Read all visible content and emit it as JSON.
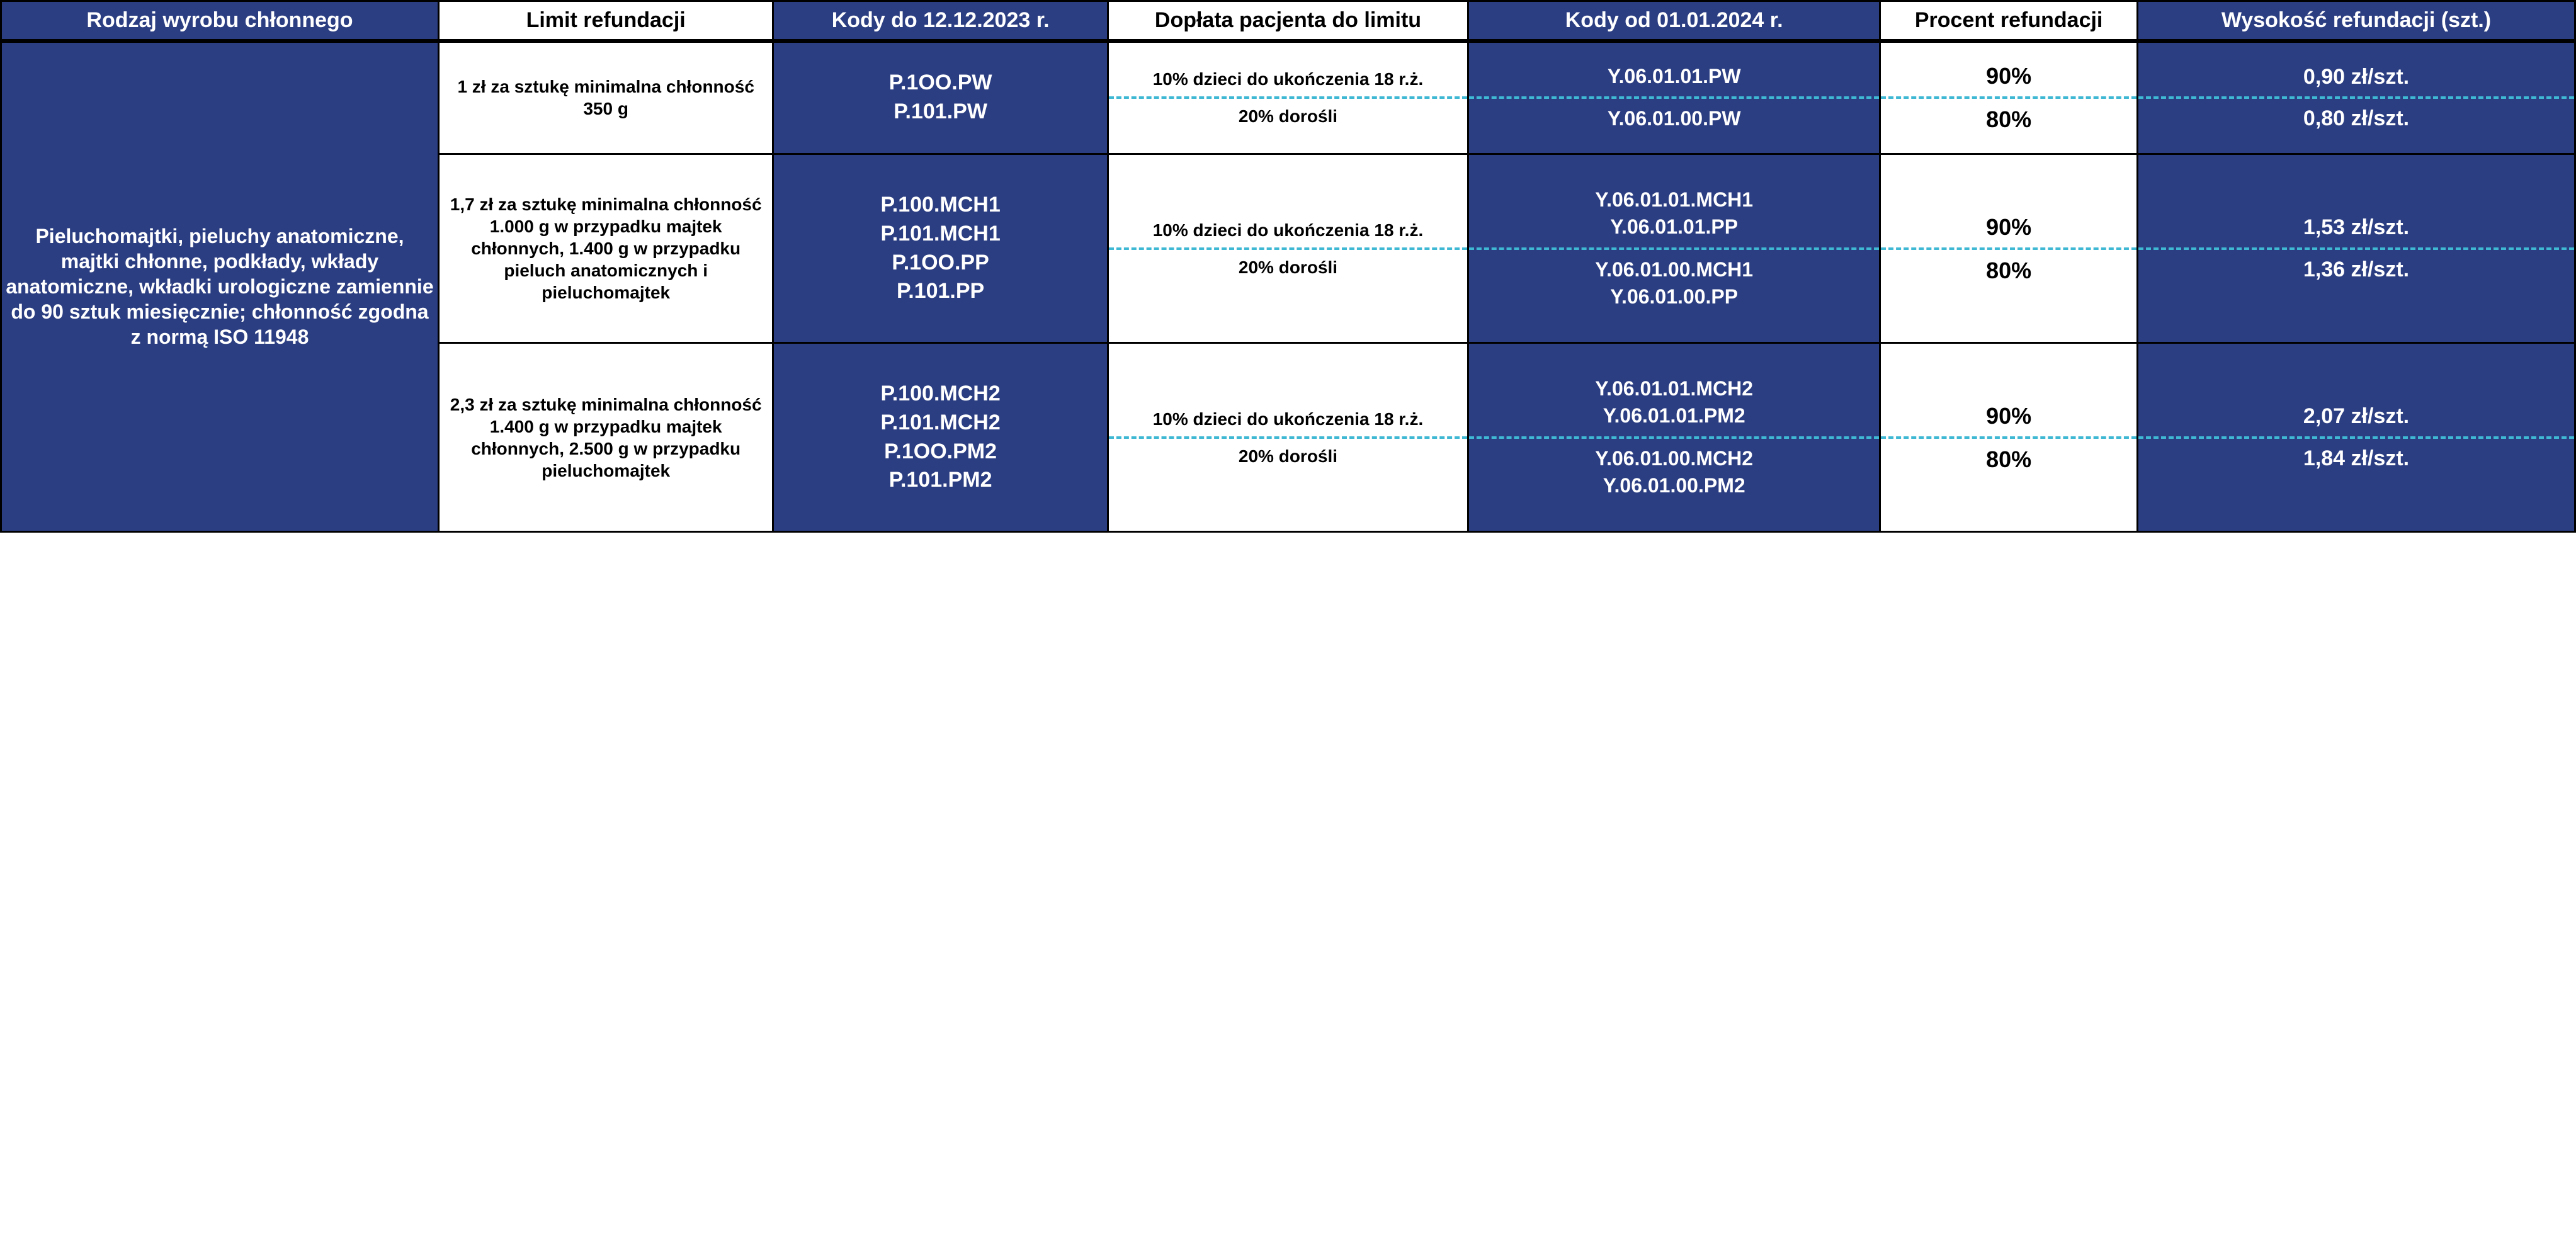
{
  "colors": {
    "blue_bg": "#2c3e82",
    "white_bg": "#ffffff",
    "text_white": "#ffffff",
    "text_black": "#000000",
    "border": "#000000",
    "dashed": "#3fb8d4"
  },
  "headers": {
    "c1": "Rodzaj wyrobu chłonnego",
    "c2": "Limit refundacji",
    "c3": "Kody do 12.12.2023 r.",
    "c4": "Dopłata pacjenta do limitu",
    "c5": "Kody od 01.01.2024 r.",
    "c6": "Procent refundacji",
    "c7": "Wysokość refundacji (szt.)"
  },
  "product_type": "Pieluchomajtki, pieluchy anatomiczne, majtki chłonne, podkłady, wkłady anatomiczne, wkładki urologiczne zamiennie do 90 sztuk miesięcznie; chłonność zgodna z normą ISO 11948",
  "rows": [
    {
      "limit": "1 zł za sztukę minimalna chłonność 350 g",
      "codes_old": "P.1OO.PW\nP.101.PW",
      "copay_top": "10% dzieci do ukończenia 18 r.ż.",
      "copay_bot": "20% dorośli",
      "codes_new_top": "Y.06.01.01.PW",
      "codes_new_bot": "Y.06.01.00.PW",
      "percent_top": "90%",
      "percent_bot": "80%",
      "amount_top": "0,90 zł/szt.",
      "amount_bot": "0,80 zł/szt."
    },
    {
      "limit": "1,7 zł za sztukę minimalna chłonność 1.000 g w przypadku majtek chłonnych, 1.400 g w przypadku pieluch anatomicznych i pieluchomajtek",
      "codes_old": "P.100.MCH1\nP.101.MCH1\nP.1OO.PP\nP.101.PP",
      "copay_top": "10% dzieci do ukończenia 18 r.ż.",
      "copay_bot": "20% dorośli",
      "codes_new_top": "Y.06.01.01.MCH1\nY.06.01.01.PP",
      "codes_new_bot": "Y.06.01.00.MCH1\nY.06.01.00.PP",
      "percent_top": "90%",
      "percent_bot": "80%",
      "amount_top": "1,53 zł/szt.",
      "amount_bot": "1,36 zł/szt."
    },
    {
      "limit": "2,3 zł za sztukę minimalna chłonność 1.400 g w przypadku majtek chłonnych, 2.500 g w przypadku pieluchomajtek",
      "codes_old": "P.100.MCH2\nP.101.MCH2\nP.1OO.PM2\nP.101.PM2",
      "copay_top": "10% dzieci do ukończenia 18 r.ż.",
      "copay_bot": "20% dorośli",
      "codes_new_top": "Y.06.01.01.MCH2\nY.06.01.01.PM2",
      "codes_new_bot": "Y.06.01.00.MCH2\nY.06.01.00.PM2",
      "percent_top": "90%",
      "percent_bot": "80%",
      "amount_top": "2,07 zł/szt.",
      "amount_bot": "1,84 zł/szt."
    }
  ],
  "row_heights": {
    "r1": 180,
    "r2": 300,
    "r3": 300
  },
  "col_widths_pct": [
    17,
    13,
    13,
    14,
    16,
    10,
    17
  ]
}
